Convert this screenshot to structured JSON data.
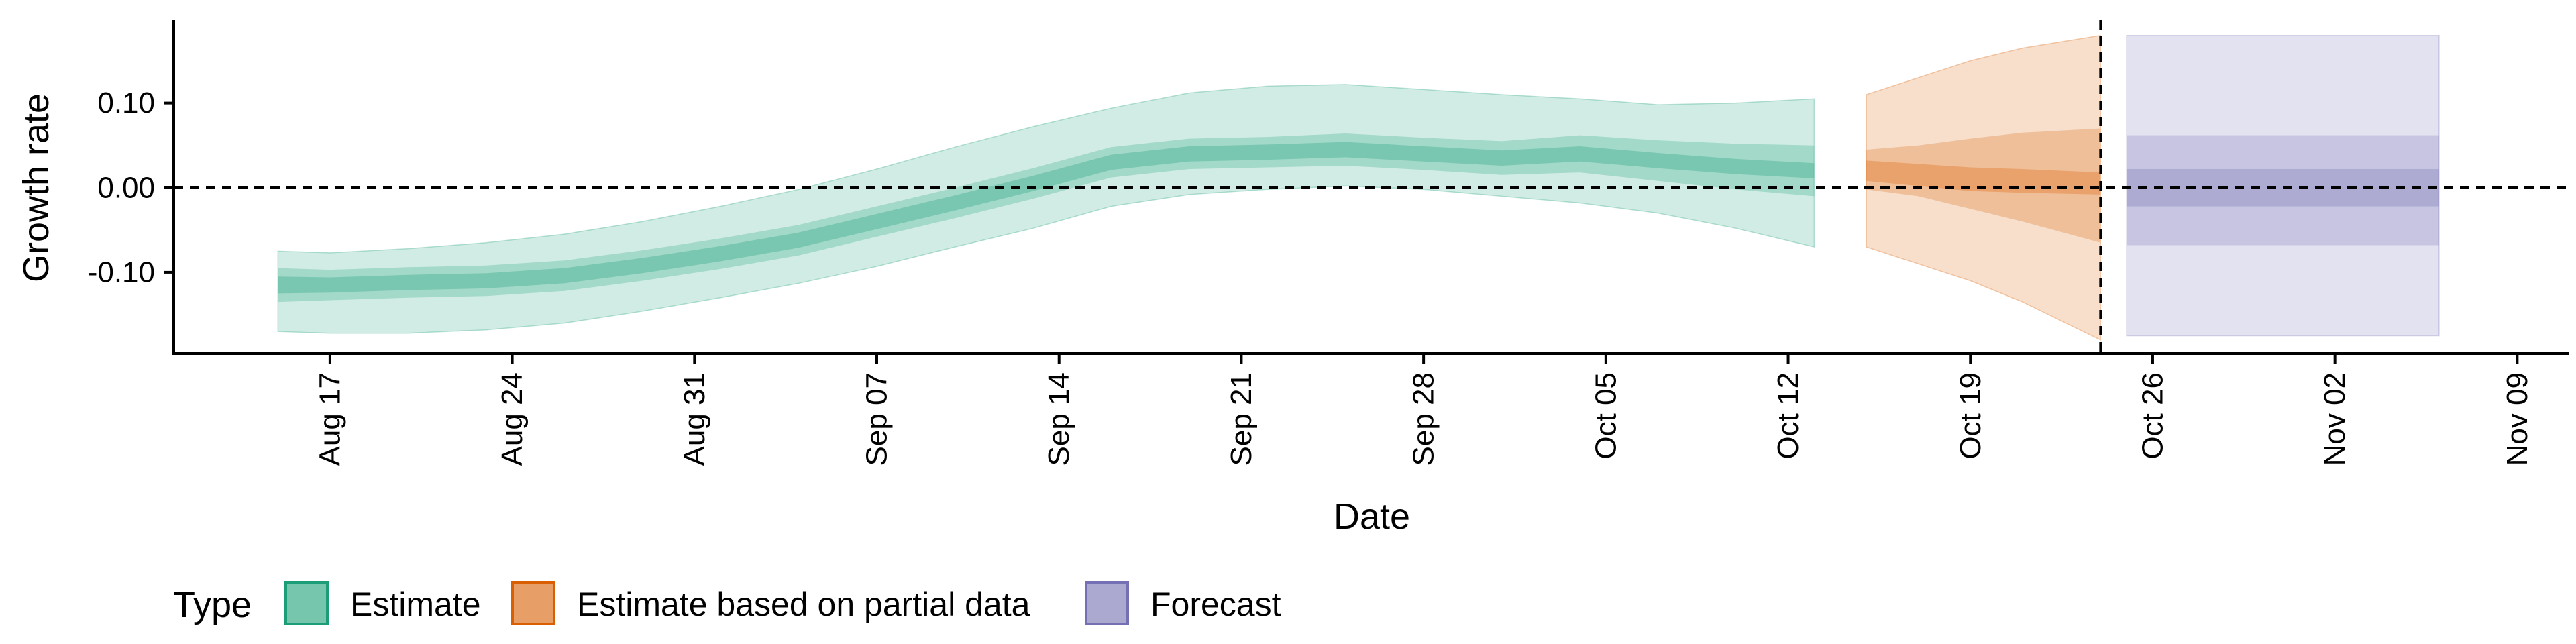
{
  "chart_data": {
    "type": "area",
    "xlabel": "Date",
    "ylabel": "Growth rate",
    "x_range": [
      "2020-08-11",
      "2020-11-11"
    ],
    "ylim": [
      -0.196,
      0.198
    ],
    "x_ticks": [
      {
        "date": "2020-08-17",
        "label": "Aug 17"
      },
      {
        "date": "2020-08-24",
        "label": "Aug 24"
      },
      {
        "date": "2020-08-31",
        "label": "Aug 31"
      },
      {
        "date": "2020-09-07",
        "label": "Sep 07"
      },
      {
        "date": "2020-09-14",
        "label": "Sep 14"
      },
      {
        "date": "2020-09-21",
        "label": "Sep 21"
      },
      {
        "date": "2020-09-28",
        "label": "Sep 28"
      },
      {
        "date": "2020-10-05",
        "label": "Oct 05"
      },
      {
        "date": "2020-10-12",
        "label": "Oct 12"
      },
      {
        "date": "2020-10-19",
        "label": "Oct 19"
      },
      {
        "date": "2020-10-26",
        "label": "Oct 26"
      },
      {
        "date": "2020-11-02",
        "label": "Nov 02"
      },
      {
        "date": "2020-11-09",
        "label": "Nov 09"
      }
    ],
    "y_ticks": [
      {
        "value": -0.1,
        "label": "-0.10"
      },
      {
        "value": 0,
        "label": "0.00"
      },
      {
        "value": 0.1,
        "label": "0.10"
      }
    ],
    "reference_lines": [
      {
        "axis": "y",
        "value": 0,
        "style": "dashed"
      },
      {
        "axis": "x",
        "value": "2020-10-24",
        "style": "dashed"
      }
    ],
    "legend": {
      "title": "Type",
      "position": "bottom-left",
      "entries": [
        {
          "label": "Estimate",
          "color": "#1b9e77"
        },
        {
          "label": "Estimate based on partial data",
          "color": "#d95f02"
        },
        {
          "label": "Forecast",
          "color": "#7570b3"
        }
      ]
    },
    "grid": false,
    "series": [
      {
        "legend_index": 0,
        "color": "#1b9e77",
        "x": [
          "2020-08-15",
          "2020-08-17",
          "2020-08-20",
          "2020-08-23",
          "2020-08-26",
          "2020-08-29",
          "2020-09-01",
          "2020-09-04",
          "2020-09-07",
          "2020-09-10",
          "2020-09-13",
          "2020-09-16",
          "2020-09-19",
          "2020-09-22",
          "2020-09-25",
          "2020-09-28",
          "2020-10-01",
          "2020-10-04",
          "2020-10-07",
          "2020-10-10",
          "2020-10-13"
        ],
        "median": [
          -0.115,
          -0.115,
          -0.112,
          -0.11,
          -0.104,
          -0.092,
          -0.078,
          -0.062,
          -0.04,
          -0.018,
          0.005,
          0.03,
          0.04,
          0.042,
          0.045,
          0.04,
          0.035,
          0.04,
          0.032,
          0.025,
          0.02
        ],
        "inner_lower": [
          -0.125,
          -0.124,
          -0.121,
          -0.119,
          -0.113,
          -0.101,
          -0.087,
          -0.071,
          -0.049,
          -0.027,
          -0.004,
          0.021,
          0.031,
          0.033,
          0.036,
          0.031,
          0.026,
          0.031,
          0.023,
          0.016,
          0.011
        ],
        "inner_upper": [
          -0.105,
          -0.106,
          -0.103,
          -0.101,
          -0.095,
          -0.083,
          -0.069,
          -0.053,
          -0.031,
          -0.009,
          0.014,
          0.039,
          0.049,
          0.051,
          0.054,
          0.049,
          0.044,
          0.049,
          0.041,
          0.034,
          0.029
        ],
        "mid_lower": [
          -0.135,
          -0.133,
          -0.13,
          -0.128,
          -0.122,
          -0.11,
          -0.096,
          -0.08,
          -0.058,
          -0.036,
          -0.013,
          0.012,
          0.022,
          0.024,
          0.026,
          0.021,
          0.015,
          0.018,
          0.008,
          -0.002,
          -0.01
        ],
        "mid_upper": [
          -0.095,
          -0.097,
          -0.094,
          -0.092,
          -0.086,
          -0.074,
          -0.06,
          -0.044,
          -0.022,
          0,
          0.023,
          0.048,
          0.058,
          0.06,
          0.064,
          0.059,
          0.055,
          0.062,
          0.056,
          0.052,
          0.05
        ],
        "outer_lower": [
          -0.17,
          -0.172,
          -0.172,
          -0.168,
          -0.16,
          -0.146,
          -0.13,
          -0.113,
          -0.093,
          -0.07,
          -0.048,
          -0.022,
          -0.008,
          -0.002,
          0.002,
          -0.002,
          -0.01,
          -0.018,
          -0.03,
          -0.048,
          -0.07
        ],
        "outer_upper": [
          -0.075,
          -0.077,
          -0.072,
          -0.065,
          -0.055,
          -0.04,
          -0.022,
          -0.002,
          0.022,
          0.048,
          0.072,
          0.094,
          0.112,
          0.12,
          0.122,
          0.116,
          0.11,
          0.105,
          0.098,
          0.1,
          0.105
        ]
      },
      {
        "legend_index": 1,
        "color": "#d95f02",
        "x": [
          "2020-10-15",
          "2020-10-17",
          "2020-10-19",
          "2020-10-21",
          "2020-10-24"
        ],
        "median": [
          0.02,
          0.015,
          0.01,
          0.008,
          0.005
        ],
        "inner_lower": [
          0.008,
          0.002,
          -0.004,
          -0.006,
          -0.008
        ],
        "inner_upper": [
          0.032,
          0.028,
          0.024,
          0.022,
          0.018
        ],
        "mid_lower": [
          -0.002,
          -0.01,
          -0.025,
          -0.04,
          -0.065
        ],
        "mid_upper": [
          0.045,
          0.05,
          0.058,
          0.065,
          0.07
        ],
        "outer_lower": [
          -0.07,
          -0.09,
          -0.11,
          -0.135,
          -0.18
        ],
        "outer_upper": [
          0.11,
          0.13,
          0.15,
          0.165,
          0.18
        ]
      },
      {
        "legend_index": 2,
        "color": "#7570b3",
        "x": [
          "2020-10-25",
          "2020-11-06"
        ],
        "median": [
          0,
          0
        ],
        "inner_lower": [
          -0.022,
          -0.022
        ],
        "inner_upper": [
          0.022,
          0.022
        ],
        "mid_lower": [
          -0.068,
          -0.068
        ],
        "mid_upper": [
          0.062,
          0.062
        ],
        "outer_lower": [
          -0.175,
          -0.175
        ],
        "outer_upper": [
          0.18,
          0.18
        ]
      }
    ]
  }
}
